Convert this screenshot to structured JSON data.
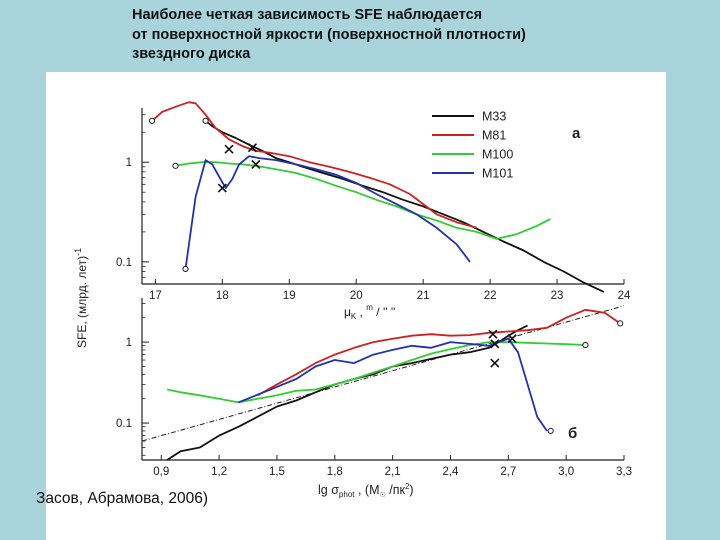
{
  "slide": {
    "title_lines": [
      "Наиболее четкая зависимость SFE наблюдается",
      "от поверхностной яркости (поверхностной плотности)",
      "звездного диска"
    ],
    "caption": "Засов, Абрамова, 2006)"
  },
  "chart_data": [
    {
      "type": "line",
      "panel_label": "а",
      "ylabel": "SFE, (млрд. лет)⁻¹",
      "ylabel_text": "SFE, (млрд. лет)",
      "ylabel_exp": "-1",
      "xlabel": "μK , m / '' ''",
      "xlabel_parts": {
        "mu": "μ",
        "sub": "K",
        "rest": " , ",
        "sup": "m",
        "tail": " / '' ''"
      },
      "yscale": "log",
      "ylim": [
        0.06,
        3.5
      ],
      "xlim": [
        16.8,
        24.0
      ],
      "xticks": [
        17,
        18,
        19,
        20,
        21,
        22,
        23,
        24
      ],
      "xtick_labels": [
        "17",
        "18",
        "19",
        "20",
        "21",
        "22",
        "23",
        "24"
      ],
      "yticks": [
        1,
        0.1
      ],
      "ytick_labels": [
        "1",
        "0.1"
      ],
      "legend_position": "top-right",
      "series": [
        {
          "name": "M33",
          "color": "#111111",
          "x": [
            17.75,
            17.85,
            18.0,
            18.2,
            18.4,
            18.6,
            18.8,
            19.0,
            19.2,
            19.5,
            19.8,
            20.1,
            20.4,
            20.7,
            21.0,
            21.3,
            21.6,
            21.9,
            22.2,
            22.5,
            22.8,
            23.1,
            23.4,
            23.7
          ],
          "y": [
            2.6,
            2.3,
            2.0,
            1.75,
            1.5,
            1.3,
            1.1,
            1.0,
            0.9,
            0.78,
            0.68,
            0.58,
            0.5,
            0.42,
            0.36,
            0.3,
            0.25,
            0.2,
            0.16,
            0.13,
            0.1,
            0.08,
            0.062,
            0.05
          ]
        },
        {
          "name": "M81",
          "color": "#cc2222",
          "x": [
            16.95,
            17.1,
            17.3,
            17.5,
            17.6,
            17.75,
            17.9,
            18.1,
            18.3,
            18.5,
            18.7,
            19.0,
            19.3,
            19.6,
            19.9,
            20.2,
            20.5,
            20.8,
            21.0,
            21.2,
            21.5,
            21.8
          ],
          "y": [
            2.6,
            3.2,
            3.6,
            4.0,
            3.9,
            3.0,
            2.2,
            1.7,
            1.45,
            1.3,
            1.25,
            1.15,
            1.0,
            0.9,
            0.8,
            0.7,
            0.6,
            0.48,
            0.38,
            0.3,
            0.25,
            0.22
          ]
        },
        {
          "name": "M100",
          "color": "#33cc33",
          "x": [
            17.3,
            17.5,
            17.7,
            17.9,
            18.1,
            18.3,
            18.5,
            18.8,
            19.1,
            19.4,
            19.7,
            20.0,
            20.3,
            20.6,
            20.9,
            21.2,
            21.5,
            21.8,
            22.1,
            22.4,
            22.7,
            22.9
          ],
          "y": [
            0.92,
            0.97,
            1.0,
            1.0,
            0.97,
            0.95,
            0.92,
            0.85,
            0.78,
            0.68,
            0.58,
            0.5,
            0.42,
            0.36,
            0.3,
            0.26,
            0.22,
            0.2,
            0.17,
            0.19,
            0.23,
            0.27
          ]
        },
        {
          "name": "M101",
          "color": "#2233aa",
          "x": [
            17.45,
            17.6,
            17.75,
            17.85,
            17.95,
            18.05,
            18.15,
            18.25,
            18.4,
            18.55,
            18.8,
            19.1,
            19.4,
            19.7,
            20.0,
            20.3,
            20.6,
            20.9,
            21.2,
            21.5,
            21.7
          ],
          "y": [
            0.085,
            0.45,
            1.05,
            0.95,
            0.72,
            0.55,
            0.68,
            0.95,
            1.15,
            1.1,
            1.05,
            0.95,
            0.85,
            0.75,
            0.62,
            0.48,
            0.38,
            0.3,
            0.22,
            0.15,
            0.1
          ]
        }
      ],
      "markers": {
        "open_circles": [
          {
            "x": 16.95,
            "y": 2.6
          },
          {
            "x": 17.3,
            "y": 0.92
          },
          {
            "x": 17.45,
            "y": 0.085
          },
          {
            "x": 17.75,
            "y": 2.6
          }
        ],
        "crosses": [
          {
            "x": 18.1,
            "y": 1.35
          },
          {
            "x": 18.45,
            "y": 1.4
          },
          {
            "x": 18.5,
            "y": 0.95
          },
          {
            "x": 18.0,
            "y": 0.55
          }
        ]
      }
    },
    {
      "type": "line",
      "panel_label": "б",
      "xlabel": "lg σphot , (M /пк²)",
      "xlabel_parts": {
        "lg": "lg ",
        "sigma": "σ",
        "sub": "phot",
        "rest": " , (M",
        "sub2": "☉",
        "rest2": " /пк",
        "sup": "2",
        "tail": ")"
      },
      "yscale": "log",
      "ylim": [
        0.035,
        3.5
      ],
      "xlim": [
        0.8,
        3.3
      ],
      "xticks": [
        0.9,
        1.2,
        1.5,
        1.8,
        2.1,
        2.4,
        2.7,
        3.0,
        3.3
      ],
      "xtick_labels": [
        "0,9",
        "1,2",
        "1,5",
        "1,8",
        "2,1",
        "2,4",
        "2,7",
        "3,0",
        "3,3"
      ],
      "yticks": [
        1,
        0.1
      ],
      "ytick_labels": [
        "1",
        "0.1"
      ],
      "series": [
        {
          "name": "M33",
          "color": "#111111",
          "x": [
            0.93,
            1.0,
            1.1,
            1.2,
            1.3,
            1.4,
            1.5,
            1.6,
            1.7,
            1.8,
            1.9,
            2.0,
            2.1,
            2.2,
            2.3,
            2.4,
            2.5,
            2.6,
            2.65,
            2.7,
            2.75,
            2.8
          ],
          "y": [
            0.035,
            0.045,
            0.05,
            0.07,
            0.09,
            0.12,
            0.16,
            0.19,
            0.24,
            0.3,
            0.35,
            0.4,
            0.5,
            0.55,
            0.62,
            0.7,
            0.75,
            0.85,
            1.0,
            1.2,
            1.4,
            1.6
          ]
        },
        {
          "name": "M81",
          "color": "#cc2222",
          "x": [
            1.4,
            1.5,
            1.6,
            1.7,
            1.8,
            1.9,
            2.0,
            2.1,
            2.2,
            2.3,
            2.4,
            2.5,
            2.6,
            2.7,
            2.8,
            2.9,
            3.0,
            3.1,
            3.2,
            3.28
          ],
          "y": [
            0.22,
            0.3,
            0.4,
            0.55,
            0.7,
            0.85,
            1.0,
            1.1,
            1.2,
            1.25,
            1.2,
            1.22,
            1.3,
            1.35,
            1.4,
            1.5,
            2.0,
            2.5,
            2.3,
            1.7
          ]
        },
        {
          "name": "M100",
          "color": "#33cc33",
          "x": [
            0.93,
            1.0,
            1.1,
            1.2,
            1.3,
            1.4,
            1.5,
            1.6,
            1.7,
            1.8,
            1.9,
            2.0,
            2.1,
            2.2,
            2.3,
            2.4,
            2.5,
            2.6,
            2.7,
            2.8,
            2.9,
            3.0,
            3.1
          ],
          "y": [
            0.26,
            0.24,
            0.22,
            0.2,
            0.18,
            0.2,
            0.22,
            0.25,
            0.26,
            0.3,
            0.35,
            0.42,
            0.5,
            0.6,
            0.72,
            0.82,
            0.92,
            1.0,
            1.0,
            0.98,
            0.96,
            0.94,
            0.92
          ]
        },
        {
          "name": "M101",
          "color": "#2233aa",
          "x": [
            1.3,
            1.45,
            1.6,
            1.7,
            1.8,
            1.9,
            2.0,
            2.1,
            2.2,
            2.3,
            2.4,
            2.5,
            2.6,
            2.65,
            2.7,
            2.75,
            2.8,
            2.85,
            2.9
          ],
          "y": [
            0.18,
            0.25,
            0.35,
            0.5,
            0.6,
            0.55,
            0.7,
            0.8,
            0.9,
            0.85,
            1.0,
            0.95,
            0.9,
            1.0,
            1.1,
            0.75,
            0.3,
            0.12,
            0.08
          ]
        }
      ],
      "markers": {
        "open_circles": [
          {
            "x": 3.28,
            "y": 1.7
          },
          {
            "x": 3.1,
            "y": 0.92
          },
          {
            "x": 2.92,
            "y": 0.08
          }
        ],
        "crosses": [
          {
            "x": 2.62,
            "y": 1.25
          },
          {
            "x": 2.63,
            "y": 0.95
          },
          {
            "x": 2.72,
            "y": 1.1
          },
          {
            "x": 2.63,
            "y": 0.55
          }
        ]
      },
      "trend_line": {
        "style": "dash-dot",
        "x": [
          0.8,
          3.3
        ],
        "y": [
          0.06,
          2.8
        ]
      }
    }
  ]
}
